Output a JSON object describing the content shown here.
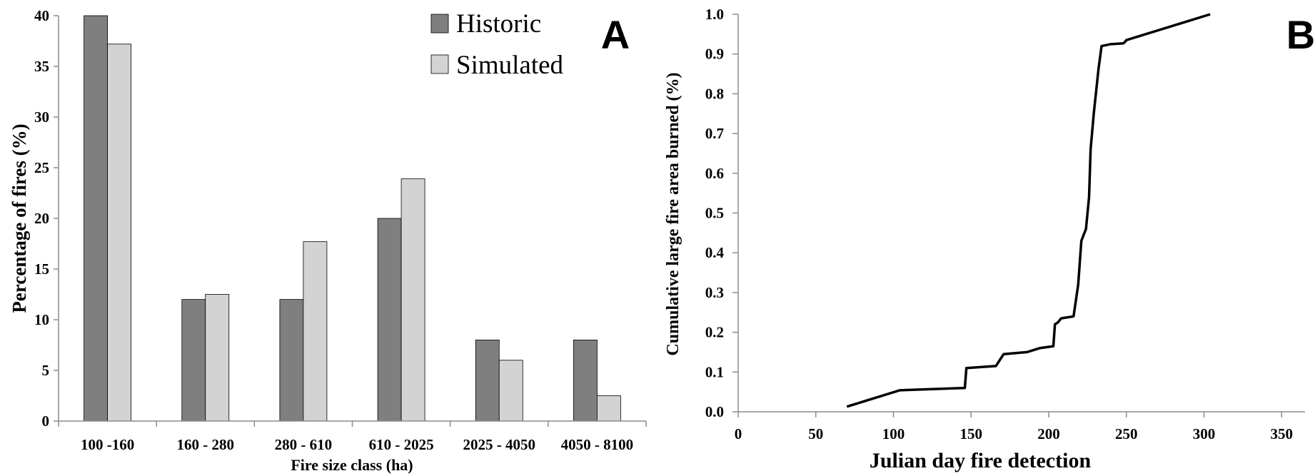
{
  "chart_data": [
    {
      "type": "bar",
      "panel_label": "A",
      "xlabel": "Fire size class (ha)",
      "ylabel": "Percentage of fires (%)",
      "ylim": [
        0,
        40
      ],
      "yticks": [
        0,
        5,
        10,
        15,
        20,
        25,
        30,
        35,
        40
      ],
      "categories": [
        "100 -160",
        "160 - 280",
        "280 - 610",
        "610 - 2025",
        "2025 - 4050",
        "4050 - 8100"
      ],
      "series": [
        {
          "name": "Historic",
          "color": "#7f7f7f",
          "values": [
            40,
            12,
            12,
            20,
            8,
            8
          ]
        },
        {
          "name": "Simulated",
          "color": "#d3d3d3",
          "values": [
            37.2,
            12.5,
            17.7,
            23.9,
            6.0,
            2.5
          ]
        }
      ],
      "legend_position": "top-right",
      "grid": false
    },
    {
      "type": "line",
      "panel_label": "B",
      "xlabel": "Julian day fire detection",
      "ylabel": "Cumulative large fire area burned (%)",
      "xlim": [
        0,
        370
      ],
      "ylim": [
        0,
        1.0
      ],
      "xticks": [
        0,
        50,
        100,
        150,
        200,
        250,
        300,
        350
      ],
      "yticks": [
        "0.0",
        "0.1",
        "0.2",
        "0.3",
        "0.4",
        "0.5",
        "0.6",
        "0.7",
        "0.8",
        "0.9",
        "1.0"
      ],
      "series": [
        {
          "color": "#000000",
          "x": [
            70,
            104,
            146,
            147,
            166,
            171,
            186,
            194,
            203,
            204,
            206,
            208,
            216,
            219,
            221,
            223,
            224,
            226,
            227,
            229,
            232,
            234,
            240,
            241,
            248,
            249,
            250,
            304
          ],
          "y": [
            0.013,
            0.054,
            0.06,
            0.11,
            0.115,
            0.145,
            0.15,
            0.16,
            0.165,
            0.22,
            0.225,
            0.235,
            0.24,
            0.32,
            0.43,
            0.45,
            0.46,
            0.54,
            0.66,
            0.75,
            0.86,
            0.92,
            0.925,
            0.925,
            0.927,
            0.93,
            0.935,
            1.0
          ]
        }
      ],
      "grid": false
    }
  ]
}
